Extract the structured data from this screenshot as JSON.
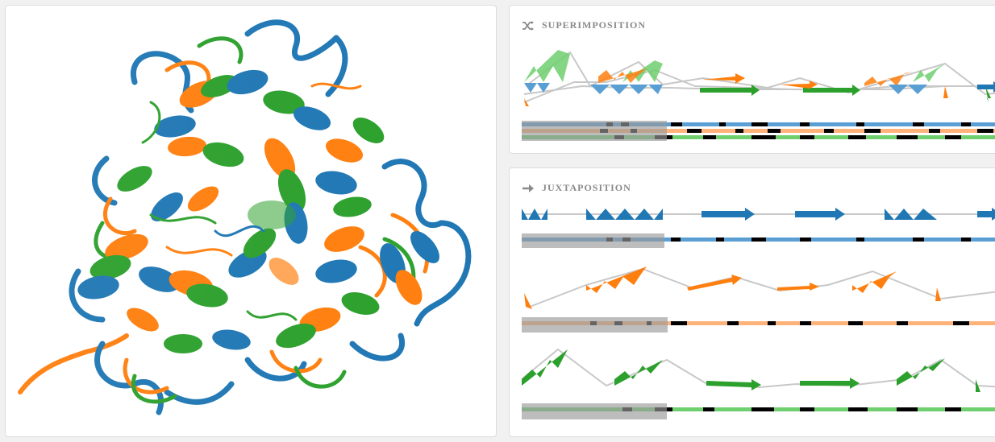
{
  "panels": {
    "superimposition": {
      "title": "SUPERIMPOSITION",
      "icon": "shuffle-icon"
    },
    "juxtaposition": {
      "title": "JUXTAPOSITION",
      "icon": "arrow-right-icon"
    }
  },
  "structures": [
    {
      "id": "blue",
      "color": "#1f77b4",
      "light": "#5a9fd4"
    },
    {
      "id": "orange",
      "color": "#ff7f0e",
      "light": "#ffb27a"
    },
    {
      "id": "green",
      "color": "#2ca02c",
      "light": "#6fcf6f"
    }
  ],
  "colors": {
    "background": "#f1f1f1",
    "panel": "#ffffff",
    "title_text": "#8a8a8a",
    "connector": "#c8c8c8",
    "sequence_gap": "#000000",
    "selection_overlay": "#9a9a9a"
  }
}
